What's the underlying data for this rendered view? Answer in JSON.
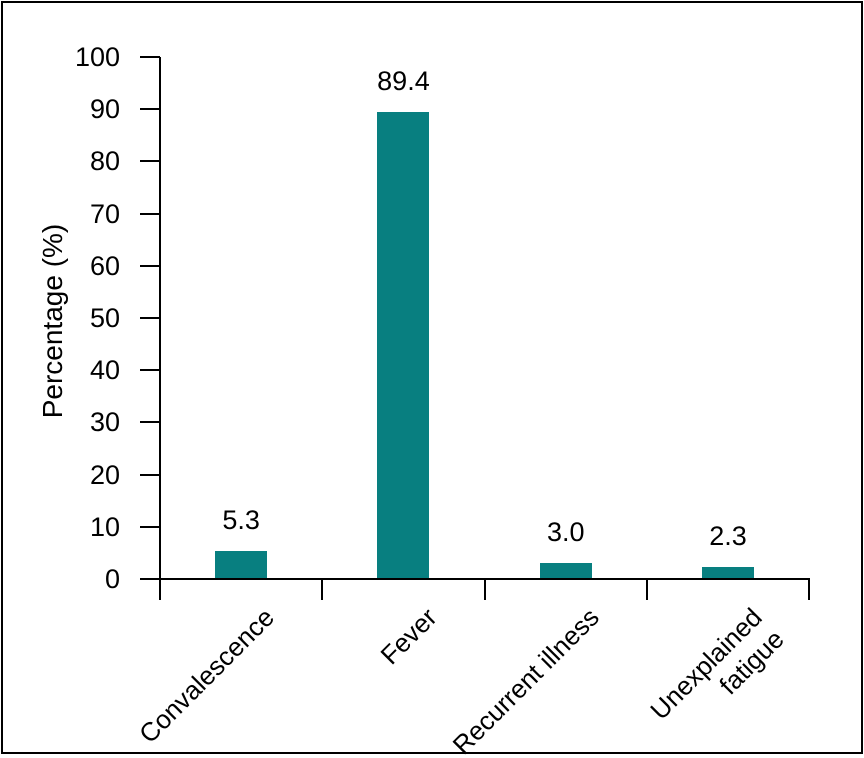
{
  "chart_data": {
    "type": "bar",
    "categories": [
      "Convalescence",
      "Fever",
      "Recurrent illness",
      "Unexplained\nfatigue"
    ],
    "values": [
      5.3,
      89.4,
      3.0,
      2.3
    ],
    "value_labels": [
      "5.3",
      "89.4",
      "3.0",
      "2.3"
    ],
    "ylabel": "Percentage (%)",
    "ylim": [
      0,
      100
    ],
    "yticks": [
      0,
      10,
      20,
      30,
      40,
      50,
      60,
      70,
      80,
      90,
      100
    ],
    "ytick_labels": [
      "0",
      "10",
      "20",
      "30",
      "40",
      "50",
      "60",
      "70",
      "80",
      "90",
      "100"
    ],
    "bar_color": "#087F80",
    "axis_color": "#000000",
    "text_color": "#000000",
    "background": "#ffffff",
    "grid": false,
    "legend": "none"
  }
}
